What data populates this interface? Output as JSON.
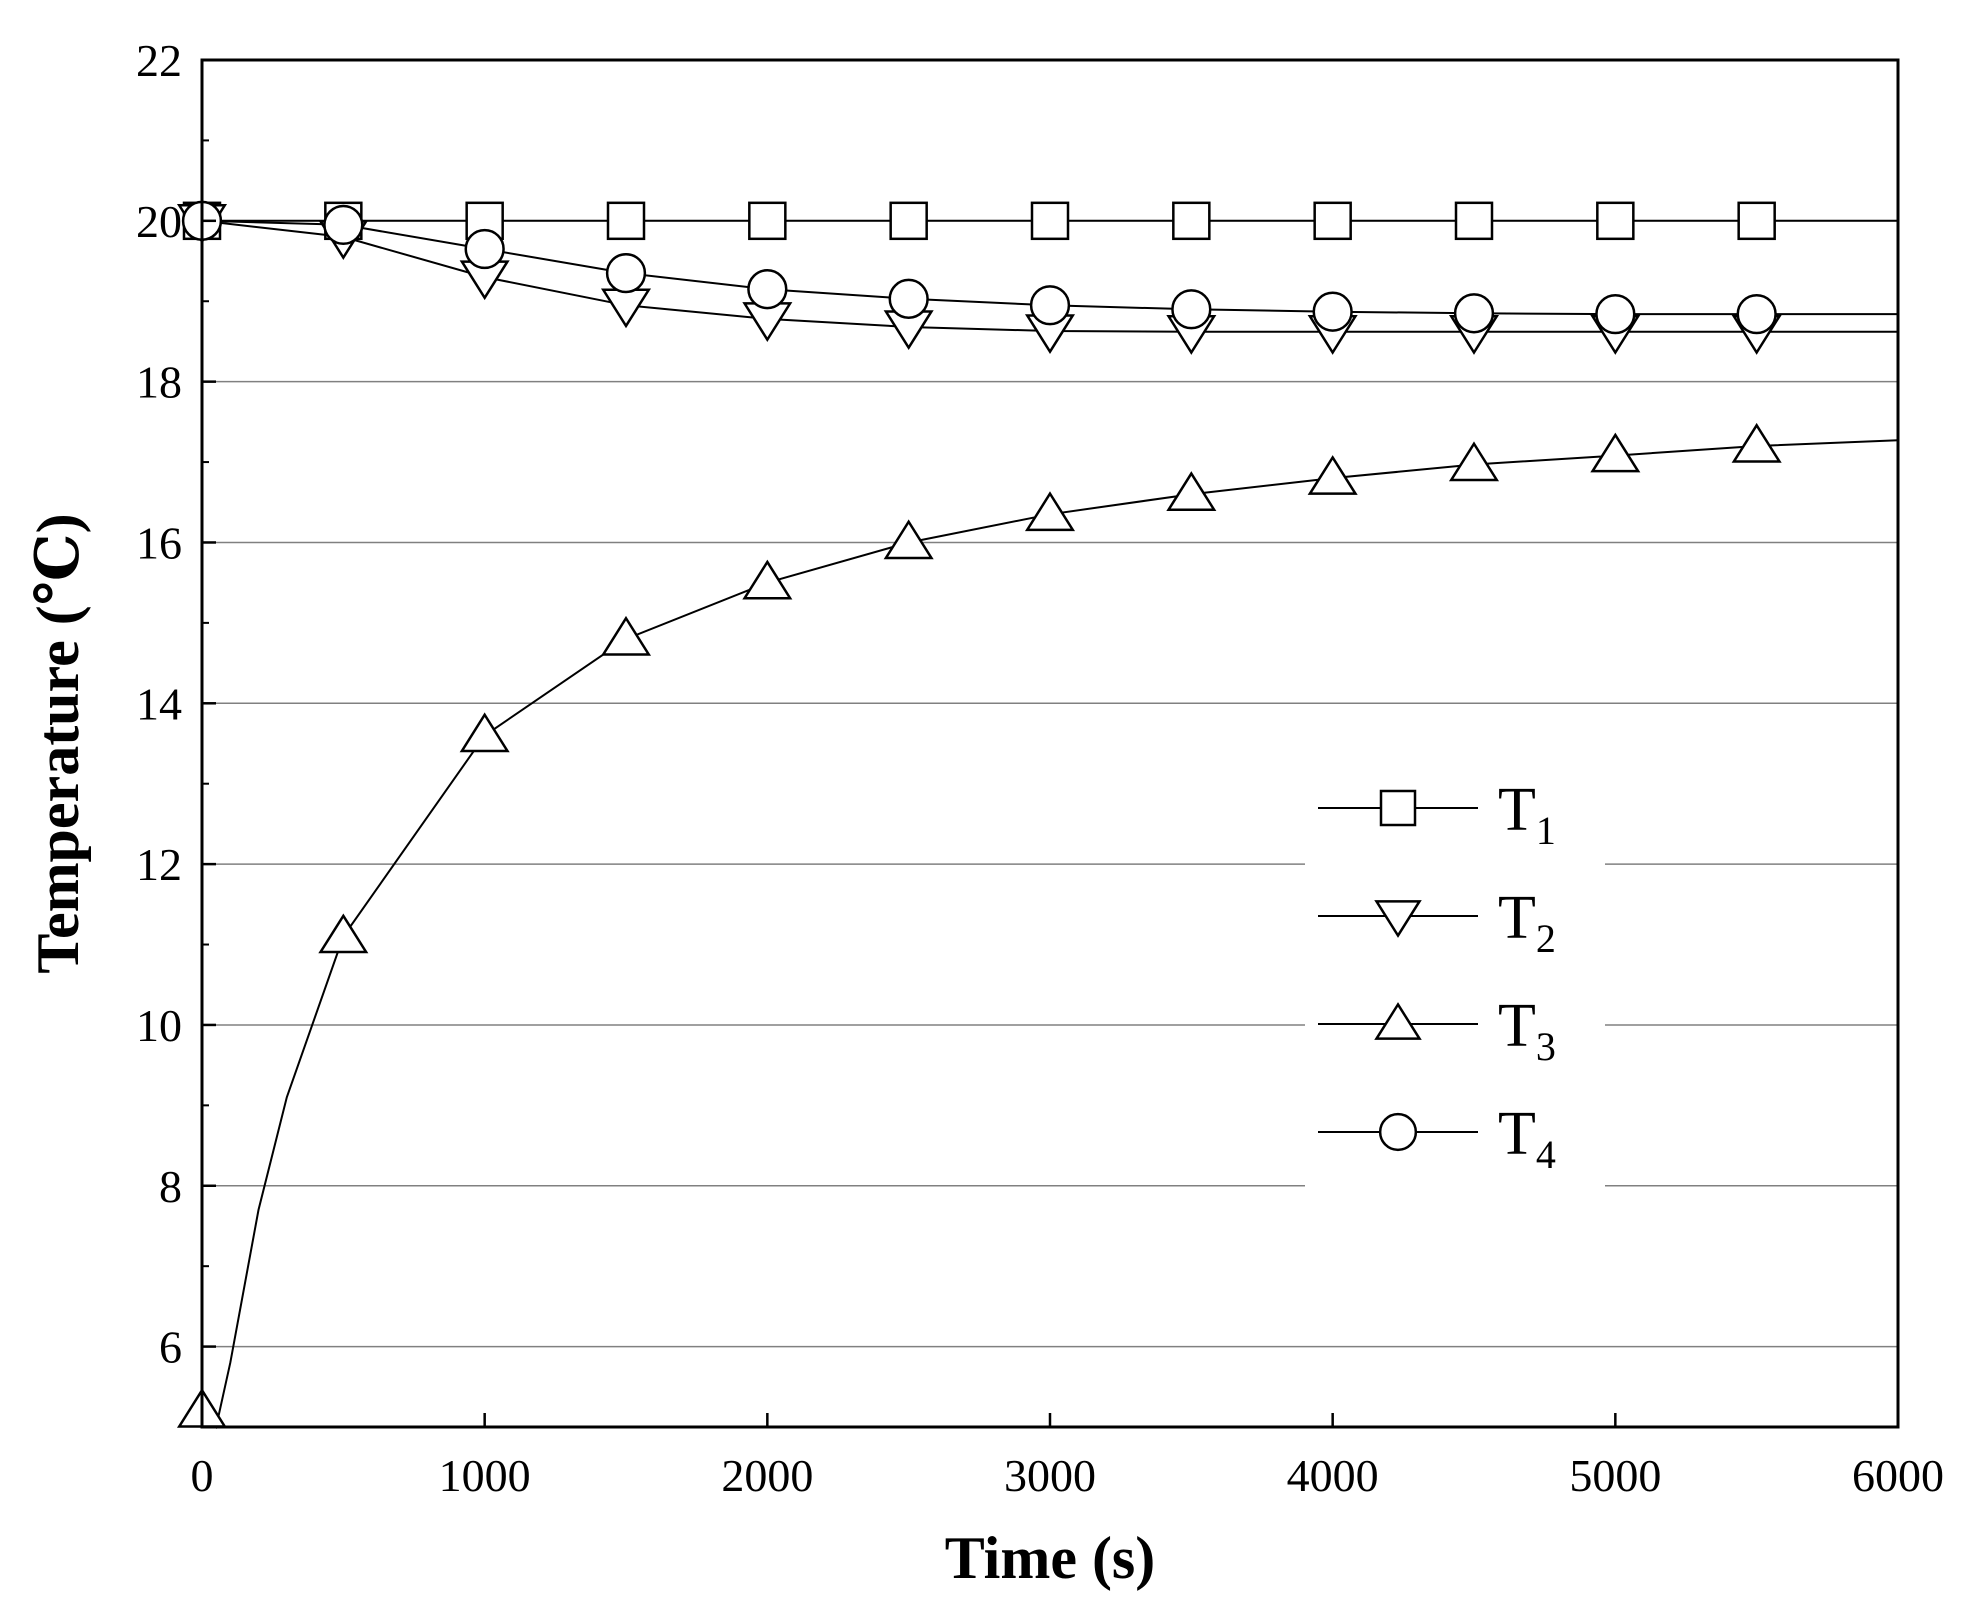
{
  "chart_data": {
    "type": "line",
    "xlabel": "Time (s)",
    "ylabel": "Temperature (℃)",
    "xlim": [
      0,
      6000
    ],
    "ylim": [
      5,
      22
    ],
    "xticks": [
      0,
      1000,
      2000,
      3000,
      4000,
      5000,
      6000
    ],
    "yticks": [
      6,
      8,
      10,
      12,
      14,
      16,
      18,
      20,
      22
    ],
    "grid": "horizontal",
    "legend": "center-right",
    "series": [
      {
        "name": "T1",
        "label_main": "T",
        "label_sub": "1",
        "marker": "square",
        "x": [
          0,
          500,
          1000,
          1500,
          2000,
          2500,
          3000,
          3500,
          4000,
          4500,
          5000,
          5500,
          6000
        ],
        "y": [
          20,
          20,
          20,
          20,
          20,
          20,
          20,
          20,
          20,
          20,
          20,
          20,
          20
        ]
      },
      {
        "name": "T2",
        "label_main": "T",
        "label_sub": "2",
        "marker": "triangle-down",
        "x": [
          0,
          500,
          1000,
          1500,
          2000,
          2500,
          3000,
          3500,
          4000,
          4500,
          5000,
          5500,
          6000
        ],
        "y": [
          20,
          19.8,
          19.3,
          18.95,
          18.78,
          18.68,
          18.63,
          18.62,
          18.62,
          18.62,
          18.62,
          18.62,
          18.62
        ]
      },
      {
        "name": "T3",
        "label_main": "T",
        "label_sub": "3",
        "marker": "triangle-up",
        "x": [
          0,
          50,
          100,
          200,
          300,
          500,
          1000,
          1500,
          2000,
          2500,
          3000,
          3500,
          4000,
          4500,
          5000,
          5500,
          6000
        ],
        "y": [
          5.2,
          5.0,
          5.8,
          7.7,
          9.1,
          11.1,
          13.6,
          14.8,
          15.5,
          16.0,
          16.35,
          16.6,
          16.8,
          16.97,
          17.08,
          17.2,
          17.27
        ]
      },
      {
        "name": "T4",
        "label_main": "T",
        "label_sub": "4",
        "marker": "circle",
        "x": [
          0,
          500,
          1000,
          1500,
          2000,
          2500,
          3000,
          3500,
          4000,
          4500,
          5000,
          5500,
          6000
        ],
        "y": [
          20,
          19.95,
          19.65,
          19.35,
          19.15,
          19.03,
          18.95,
          18.9,
          18.87,
          18.85,
          18.84,
          18.84,
          18.84
        ]
      }
    ]
  }
}
